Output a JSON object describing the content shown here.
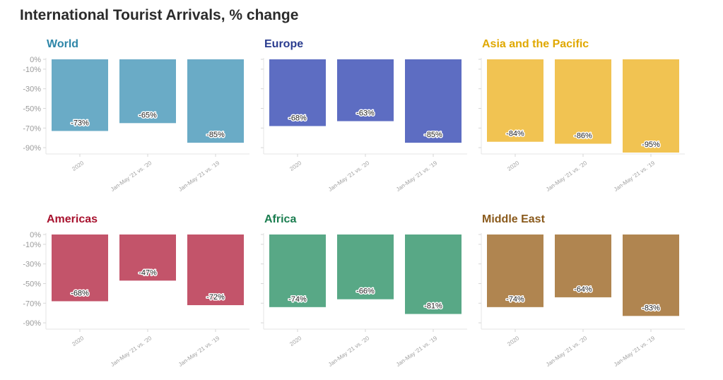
{
  "title": "International Tourist Arrivals, % change",
  "colors": {
    "world": "#6aabc6",
    "europe": "#5d6dc2",
    "asia": "#f1c352",
    "americas": "#c3546a",
    "africa": "#58a886",
    "middle_east": "#b08550"
  },
  "title_colors": {
    "world": "#2e86a8",
    "europe": "#2a3c8f",
    "asia": "#e0a800",
    "americas": "#a8122e",
    "africa": "#1a7d4f",
    "middle_east": "#8a5a1c"
  },
  "chart_data": [
    {
      "type": "bar",
      "title": "World",
      "categories": [
        "2020",
        "Jan-May '21 vs. '20",
        "Jan-May '21 vs. '19"
      ],
      "values": [
        -73,
        -65,
        -85
      ],
      "labels": [
        "-73%",
        "-65%",
        "-85%"
      ],
      "yticks": [
        "0%",
        "-10%",
        "-30%",
        "-50%",
        "-70%",
        "-90%"
      ],
      "ytick_values": [
        0,
        -10,
        -30,
        -50,
        -70,
        -90
      ],
      "ylim": [
        -95,
        0
      ],
      "grid": false
    },
    {
      "type": "bar",
      "title": "Europe",
      "categories": [
        "2020",
        "Jan-May '21 vs. '20",
        "Jan-May '21 vs. '19"
      ],
      "values": [
        -68,
        -63,
        -85
      ],
      "labels": [
        "-68%",
        "-63%",
        "-85%"
      ],
      "ylim": [
        -95,
        0
      ],
      "grid": false
    },
    {
      "type": "bar",
      "title": "Asia and the Pacific",
      "categories": [
        "2020",
        "Jan-May '21 vs. '20",
        "Jan-May '21 vs. '19"
      ],
      "values": [
        -84,
        -86,
        -95
      ],
      "labels": [
        "-84%",
        "-86%",
        "-95%"
      ],
      "ylim": [
        -95,
        0
      ],
      "grid": false
    },
    {
      "type": "bar",
      "title": "Americas",
      "categories": [
        "2020",
        "Jan-May '21 vs. '20",
        "Jan-May '21 vs. '19"
      ],
      "values": [
        -68,
        -47,
        -72
      ],
      "labels": [
        "-68%",
        "-47%",
        "-72%"
      ],
      "yticks": [
        "0%",
        "-10%",
        "-30%",
        "-50%",
        "-70%",
        "-90%"
      ],
      "ytick_values": [
        0,
        -10,
        -30,
        -50,
        -70,
        -90
      ],
      "ylim": [
        -95,
        0
      ],
      "grid": false
    },
    {
      "type": "bar",
      "title": "Africa",
      "categories": [
        "2020",
        "Jan-May '21 vs. '20",
        "Jan-May '21 vs. '19"
      ],
      "values": [
        -74,
        -66,
        -81
      ],
      "labels": [
        "-74%",
        "-66%",
        "-81%"
      ],
      "ylim": [
        -95,
        0
      ],
      "grid": false
    },
    {
      "type": "bar",
      "title": "Middle East",
      "categories": [
        "2020",
        "Jan-May '21 vs. '20",
        "Jan-May '21 vs. '19"
      ],
      "values": [
        -74,
        -64,
        -83
      ],
      "labels": [
        "-74%",
        "-64%",
        "-83%"
      ],
      "ylim": [
        -95,
        0
      ],
      "grid": false
    }
  ]
}
